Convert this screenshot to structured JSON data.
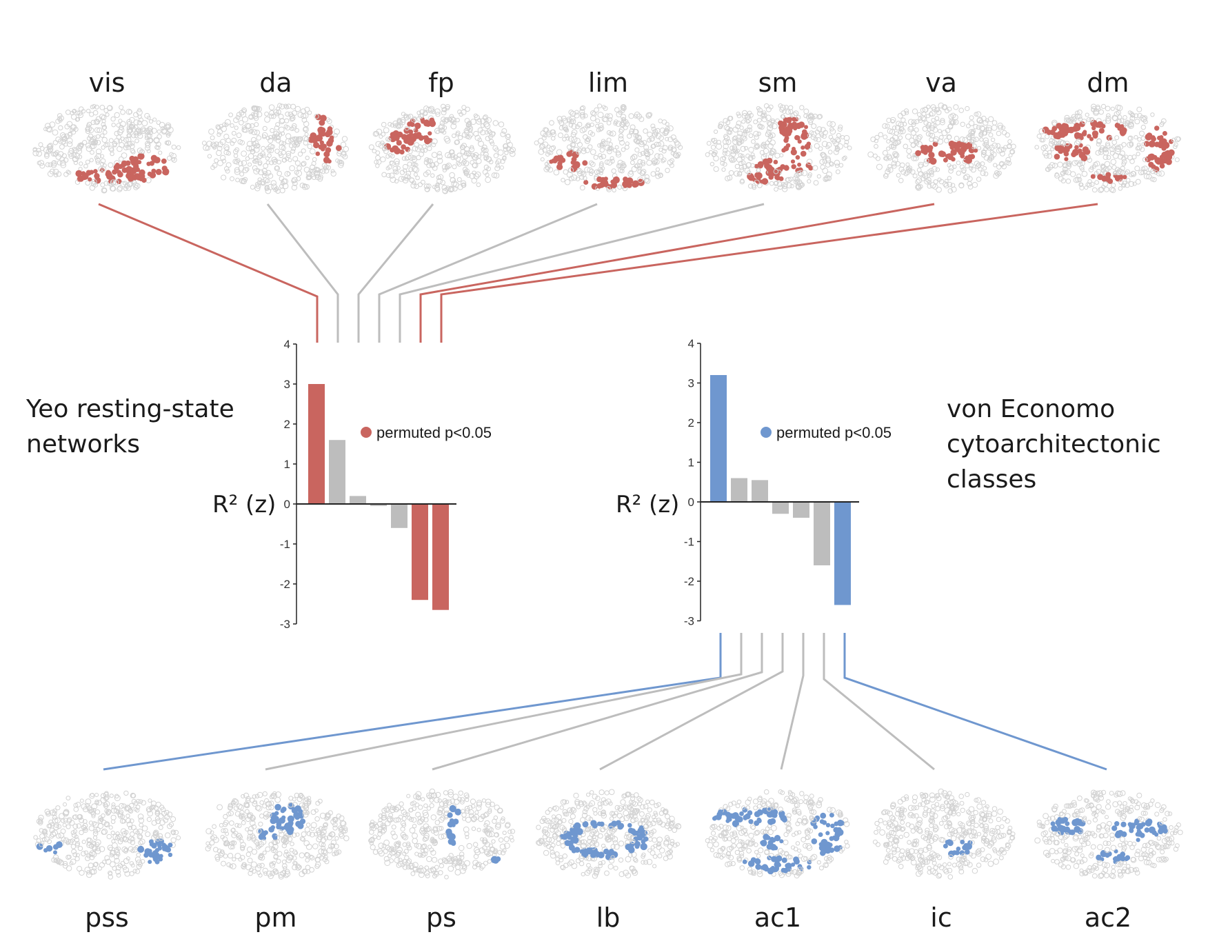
{
  "colors": {
    "yeo": "#c9655f",
    "econ": "#6f97cf",
    "ns": "#bdbdbd",
    "dot": "#d2d2d2",
    "axis": "#222222"
  },
  "left_panel": {
    "label_lines": [
      "Yeo resting-state",
      "networks"
    ],
    "ylabel": "R² (z)",
    "legend": "permuted p<0.05"
  },
  "right_panel": {
    "label_lines": [
      "von Economo",
      "cytoarchitectonic",
      "classes"
    ],
    "ylabel": "R² (z)",
    "legend": "permuted p<0.05"
  },
  "chart_data": [
    {
      "type": "bar",
      "xlabel": "",
      "ylabel": "R² (z)",
      "ylim": [
        -3,
        4
      ],
      "yticks": [
        4,
        3,
        2,
        1,
        0,
        -1,
        -2,
        -3
      ],
      "legend": "permuted p<0.05",
      "categories": [
        "vis",
        "da",
        "fp",
        "lim",
        "sm",
        "va",
        "dm"
      ],
      "values": [
        3.0,
        1.6,
        0.2,
        -0.05,
        -0.6,
        -2.4,
        -2.65
      ],
      "significant": [
        true,
        false,
        false,
        false,
        false,
        true,
        true
      ]
    },
    {
      "type": "bar",
      "xlabel": "",
      "ylabel": "R² (z)",
      "ylim": [
        -3,
        4
      ],
      "yticks": [
        4,
        3,
        2,
        1,
        0,
        -1,
        -2,
        -3
      ],
      "legend": "permuted p<0.05",
      "categories": [
        "pss",
        "pm",
        "ps",
        "lb",
        "ac1",
        "ic",
        "ac2"
      ],
      "values": [
        3.2,
        0.6,
        0.55,
        -0.3,
        -0.4,
        -1.6,
        -2.6
      ],
      "significant": [
        true,
        false,
        false,
        false,
        false,
        false,
        true
      ]
    }
  ]
}
